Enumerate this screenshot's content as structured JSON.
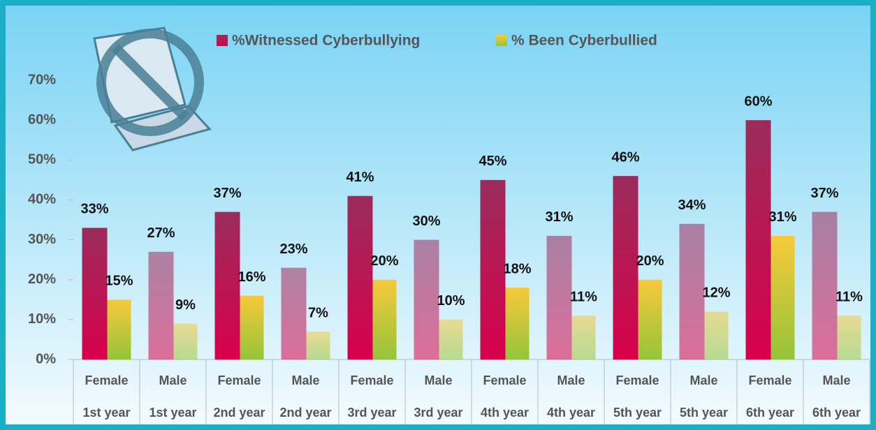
{
  "chart_data": {
    "type": "bar",
    "categories": [
      "Female",
      "Male",
      "Female",
      "Male",
      "Female",
      "Male",
      "Female",
      "Male",
      "Female",
      "Male",
      "Female",
      "Male"
    ],
    "groups": [
      "1st year",
      "1st year",
      "2nd year",
      "2nd year",
      "3rd year",
      "3rd year",
      "4th year",
      "4th year",
      "5th year",
      "5th year",
      "6th year",
      "6th year"
    ],
    "series": [
      {
        "name": "%Witnessed Cyberbullying",
        "color": "#9a2c5c",
        "values": [
          33,
          27,
          37,
          23,
          41,
          30,
          45,
          31,
          46,
          34,
          60,
          37
        ],
        "value_labels": [
          "33%",
          "27%",
          "37%",
          "23%",
          "41%",
          "30%",
          "45%",
          "31%",
          "46%",
          "34%",
          "60%",
          "37%"
        ]
      },
      {
        "name": "% Been Cyberbullied",
        "color": "#f8c93b",
        "values": [
          15,
          9,
          16,
          7,
          20,
          10,
          18,
          11,
          20,
          12,
          31,
          11
        ],
        "value_labels": [
          "15%",
          "9%",
          "16%",
          "7%",
          "20%",
          "10%",
          "18%",
          "11%",
          "20%",
          "12%",
          "31%",
          "11%"
        ]
      }
    ],
    "ylim": [
      0,
      70
    ],
    "yticks": [
      {
        "value": 0,
        "label": "0%"
      },
      {
        "value": 10,
        "label": "10%"
      },
      {
        "value": 20,
        "label": "20%"
      },
      {
        "value": 30,
        "label": "30%"
      },
      {
        "value": 40,
        "label": "40%"
      },
      {
        "value": 50,
        "label": "50%"
      },
      {
        "value": 60,
        "label": "60%"
      },
      {
        "value": 70,
        "label": "70%"
      }
    ],
    "grid": false,
    "legend": "top"
  }
}
